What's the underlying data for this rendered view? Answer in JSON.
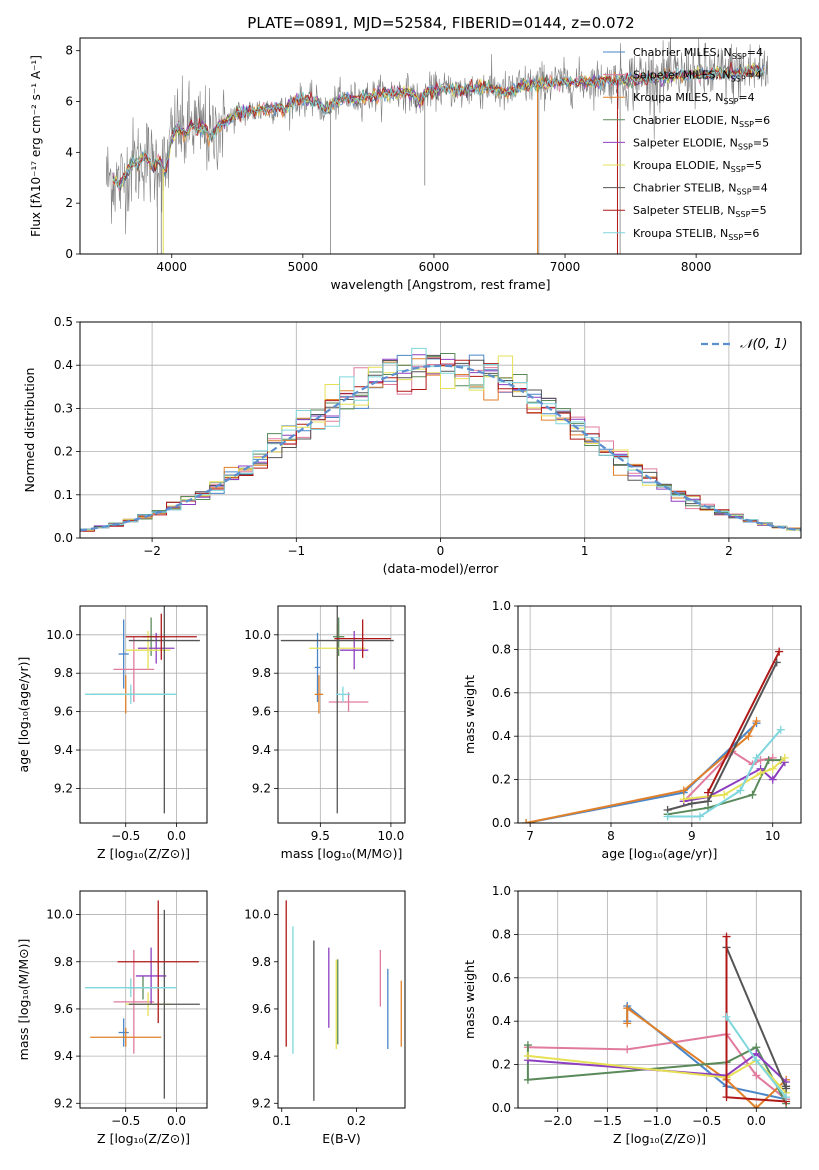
{
  "title": "PLATE=0891, MJD=52584, FIBERID=0144, z=0.072",
  "colors": {
    "Chabrier MILES": "#4a86c8",
    "Salpeter MILES": "#e07b9e",
    "Kroupa MILES": "#e0802a",
    "Chabrier ELODIE": "#5a8a5a",
    "Salpeter ELODIE": "#8e3fc0",
    "Kroupa ELODIE": "#e6e055",
    "Chabrier STELIB": "#555555",
    "Salpeter STELIB": "#b01818",
    "Kroupa STELIB": "#7fd6dc",
    "data": "#808080",
    "gauss": "#5b8fd0"
  },
  "chart_data": [
    {
      "id": "spectrum",
      "type": "line",
      "xlabel": "wavelength [Angstrom, rest frame]",
      "ylabel": "Flux [fλ10⁻¹⁷ erg cm⁻² s⁻¹ A⁻¹]",
      "xlim": [
        3300,
        8800
      ],
      "ylim": [
        0,
        8.5
      ],
      "xticks": [
        4000,
        5000,
        6000,
        7000,
        8000
      ],
      "yticks": [
        0,
        2,
        4,
        6,
        8
      ],
      "legend_position": "top-right",
      "legend": [
        {
          "model": "Chabrier MILES",
          "label": "Chabrier MILES, N",
          "sub": "SSP",
          "tail": "=4"
        },
        {
          "model": "Salpeter MILES",
          "label": "Salpeter MILES, N",
          "sub": "SSP",
          "tail": "=4"
        },
        {
          "model": "Kroupa MILES",
          "label": "Kroupa MILES, N",
          "sub": "SSP",
          "tail": "=4"
        },
        {
          "model": "Chabrier ELODIE",
          "label": "Chabrier ELODIE, N",
          "sub": "SSP",
          "tail": "=6"
        },
        {
          "model": "Salpeter ELODIE",
          "label": "Salpeter ELODIE, N",
          "sub": "SSP",
          "tail": "=5"
        },
        {
          "model": "Kroupa ELODIE",
          "label": "Kroupa ELODIE, N",
          "sub": "SSP",
          "tail": "=5"
        },
        {
          "model": "Chabrier STELIB",
          "label": "Chabrier STELIB, N",
          "sub": "SSP",
          "tail": "=4"
        },
        {
          "model": "Salpeter STELIB",
          "label": "Salpeter STELIB, N",
          "sub": "SSP",
          "tail": "=5"
        },
        {
          "model": "Kroupa STELIB",
          "label": "Kroupa STELIB, N",
          "sub": "SSP",
          "tail": "=6"
        }
      ],
      "continuum": [
        [
          3550,
          3.0
        ],
        [
          3600,
          2.7
        ],
        [
          3650,
          3.1
        ],
        [
          3700,
          3.6
        ],
        [
          3750,
          3.6
        ],
        [
          3800,
          3.9
        ],
        [
          3850,
          3.4
        ],
        [
          3900,
          3.7
        ],
        [
          3950,
          3.2
        ],
        [
          4000,
          4.6
        ],
        [
          4050,
          5.0
        ],
        [
          4100,
          4.7
        ],
        [
          4150,
          5.1
        ],
        [
          4200,
          4.9
        ],
        [
          4250,
          5.0
        ],
        [
          4300,
          4.5
        ],
        [
          4350,
          5.0
        ],
        [
          4400,
          5.2
        ],
        [
          4500,
          5.5
        ],
        [
          4600,
          5.6
        ],
        [
          4700,
          5.7
        ],
        [
          4800,
          5.8
        ],
        [
          4861,
          5.6
        ],
        [
          4900,
          5.9
        ],
        [
          5000,
          6.1
        ],
        [
          5100,
          6.0
        ],
        [
          5175,
          5.6
        ],
        [
          5200,
          5.8
        ],
        [
          5300,
          6.1
        ],
        [
          5400,
          6.1
        ],
        [
          5500,
          6.2
        ],
        [
          5600,
          6.3
        ],
        [
          5700,
          6.35
        ],
        [
          5800,
          6.4
        ],
        [
          5890,
          6.0
        ],
        [
          5950,
          6.4
        ],
        [
          6100,
          6.5
        ],
        [
          6200,
          6.4
        ],
        [
          6300,
          6.5
        ],
        [
          6400,
          6.6
        ],
        [
          6500,
          6.4
        ],
        [
          6563,
          6.3
        ],
        [
          6650,
          6.6
        ],
        [
          6800,
          6.7
        ],
        [
          7000,
          6.75
        ],
        [
          7200,
          6.8
        ],
        [
          7400,
          6.85
        ],
        [
          7600,
          6.9
        ],
        [
          7800,
          7.0
        ],
        [
          8000,
          7.05
        ],
        [
          8200,
          7.1
        ],
        [
          8400,
          7.2
        ],
        [
          8500,
          7.2
        ]
      ],
      "data_noise_segments": [
        [
          3500,
          4400,
          1.6
        ],
        [
          4400,
          5200,
          0.55
        ],
        [
          5200,
          6200,
          0.6
        ],
        [
          6200,
          7400,
          0.75
        ],
        [
          7400,
          8550,
          1.1
        ]
      ],
      "spikes": [
        [
          3890,
          0
        ],
        [
          3920,
          0
        ],
        [
          5210,
          0
        ],
        [
          5930,
          2.7
        ],
        [
          6800,
          0
        ],
        [
          7420,
          0
        ]
      ],
      "model_spikes": [
        [
          3935,
          0
        ],
        [
          6790,
          0
        ],
        [
          7400,
          0
        ]
      ]
    },
    {
      "id": "residuals",
      "type": "line",
      "xlabel": "(data-model)/error",
      "ylabel": "Normed distribution",
      "xlim": [
        -2.5,
        2.5
      ],
      "ylim": [
        0,
        0.5
      ],
      "xticks": [
        -2,
        -1,
        0,
        1,
        2
      ],
      "yticks": [
        0.0,
        0.1,
        0.2,
        0.3,
        0.4,
        0.5
      ],
      "legend_position": "top-right",
      "gauss_label": "𝒩(0, 1)",
      "bin_width": 0.1
    },
    {
      "id": "age-Z",
      "type": "scatter",
      "xlabel": "Z [log₁₀(Z/Z⊙)]",
      "ylabel": "age  [log₁₀(age/yr)]",
      "xlim": [
        -0.95,
        0.3
      ],
      "ylim": [
        9.02,
        10.15
      ],
      "xticks": [
        -0.5,
        0.0
      ],
      "yticks": [
        9.2,
        9.4,
        9.6,
        9.8,
        10.0
      ],
      "points": [
        {
          "model": "Chabrier MILES",
          "x": -0.52,
          "y": 9.9,
          "xerr": 0.05,
          "yerr": 0.18
        },
        {
          "model": "Salpeter MILES",
          "x": -0.42,
          "y": 9.82,
          "xerr": 0.2,
          "yerr": 0.17
        },
        {
          "model": "Kroupa MILES",
          "x": -0.5,
          "y": 9.69,
          "xerr": 0.35,
          "yerr": 0.1
        },
        {
          "model": "Chabrier ELODIE",
          "x": -0.25,
          "y": 9.99,
          "xerr": 0.08,
          "yerr": 0.1
        },
        {
          "model": "Salpeter ELODIE",
          "x": -0.2,
          "y": 9.93,
          "xerr": 0.18,
          "yerr": 0.08
        },
        {
          "model": "Kroupa ELODIE",
          "x": -0.28,
          "y": 9.92,
          "xerr": 0.22,
          "yerr": 0.1
        },
        {
          "model": "Chabrier STELIB",
          "x": -0.12,
          "y": 9.97,
          "xerr": 0.35,
          "yerr": 0.9
        },
        {
          "model": "Salpeter STELIB",
          "x": -0.15,
          "y": 9.99,
          "xerr": 0.35,
          "yerr": 0.12
        },
        {
          "model": "Kroupa STELIB",
          "x": -0.45,
          "y": 9.69,
          "xerr": 0.45,
          "yerr": 0.05
        }
      ]
    },
    {
      "id": "age-mass",
      "type": "scatter",
      "xlabel": "mass [log₁₀(M/M⊙)]",
      "ylabel": "",
      "xlim": [
        9.2,
        10.1
      ],
      "ylim": [
        9.02,
        10.15
      ],
      "xticks": [
        9.5,
        10.0
      ],
      "yticks": [
        9.2,
        9.4,
        9.6,
        9.8,
        10.0
      ],
      "points": [
        {
          "model": "Chabrier MILES",
          "x": 9.48,
          "y": 9.83,
          "xerr": 0.02,
          "yerr": 0.18
        },
        {
          "model": "Salpeter MILES",
          "x": 9.7,
          "y": 9.65,
          "xerr": 0.14,
          "yerr": 0.05
        },
        {
          "model": "Kroupa MILES",
          "x": 9.49,
          "y": 9.69,
          "xerr": 0.03,
          "yerr": 0.1
        },
        {
          "model": "Chabrier ELODIE",
          "x": 9.63,
          "y": 9.99,
          "xerr": 0.04,
          "yerr": 0.1
        },
        {
          "model": "Salpeter ELODIE",
          "x": 9.74,
          "y": 9.92,
          "xerr": 0.1,
          "yerr": 0.1
        },
        {
          "model": "Kroupa ELODIE",
          "x": 9.62,
          "y": 9.93,
          "xerr": 0.2,
          "yerr": 0.12
        },
        {
          "model": "Chabrier STELIB",
          "x": 9.62,
          "y": 9.97,
          "xerr": 0.4,
          "yerr": 0.9
        },
        {
          "model": "Salpeter STELIB",
          "x": 9.8,
          "y": 9.98,
          "xerr": 0.2,
          "yerr": 0.1
        },
        {
          "model": "Kroupa STELIB",
          "x": 9.66,
          "y": 9.69,
          "xerr": 0.05,
          "yerr": 0.04
        }
      ]
    },
    {
      "id": "weight-age",
      "type": "line",
      "xlabel": "age  [log₁₀(age/yr)]",
      "ylabel": "mass weight",
      "xlim": [
        6.85,
        10.35
      ],
      "ylim": [
        0,
        1
      ],
      "xticks": [
        7,
        8,
        9,
        10
      ],
      "yticks": [
        0.0,
        0.2,
        0.4,
        0.6,
        0.8,
        1.0
      ],
      "series": [
        {
          "model": "Chabrier MILES",
          "x": [
            6.95,
            8.9,
            9.8
          ],
          "y": [
            0.0,
            0.14,
            0.46
          ]
        },
        {
          "model": "Salpeter MILES",
          "x": [
            8.9,
            9.5,
            9.75,
            9.85,
            10.0
          ],
          "y": [
            0.1,
            0.33,
            0.27,
            0.29,
            0.3
          ]
        },
        {
          "model": "Kroupa MILES",
          "x": [
            6.95,
            8.9,
            9.7,
            9.8
          ],
          "y": [
            0.0,
            0.15,
            0.4,
            0.47
          ]
        },
        {
          "model": "Chabrier ELODIE",
          "x": [
            8.7,
            9.2,
            9.75,
            9.95,
            10.1
          ],
          "y": [
            0.04,
            0.07,
            0.13,
            0.29,
            0.29
          ]
        },
        {
          "model": "Salpeter ELODIE",
          "x": [
            8.9,
            9.2,
            9.85,
            10.0,
            10.15
          ],
          "y": [
            0.1,
            0.12,
            0.25,
            0.2,
            0.28
          ]
        },
        {
          "model": "Kroupa ELODIE",
          "x": [
            8.9,
            9.4,
            9.85,
            10.0,
            10.15
          ],
          "y": [
            0.11,
            0.13,
            0.23,
            0.25,
            0.3
          ]
        },
        {
          "model": "Chabrier STELIB",
          "x": [
            8.7,
            9.0,
            9.2,
            10.05
          ],
          "y": [
            0.06,
            0.09,
            0.1,
            0.74
          ]
        },
        {
          "model": "Salpeter STELIB",
          "x": [
            9.2,
            10.08
          ],
          "y": [
            0.14,
            0.79
          ]
        },
        {
          "model": "Kroupa STELIB",
          "x": [
            8.7,
            9.1,
            9.6,
            9.8,
            10.1
          ],
          "y": [
            0.03,
            0.03,
            0.15,
            0.3,
            0.43
          ]
        }
      ]
    },
    {
      "id": "mass-Z",
      "type": "scatter",
      "xlabel": "Z [log₁₀(Z/Z⊙)]",
      "ylabel": "mass [log₁₀(M/M⊙)]",
      "xlim": [
        -0.95,
        0.3
      ],
      "ylim": [
        9.18,
        10.1
      ],
      "xticks": [
        -0.5,
        0.0
      ],
      "yticks": [
        9.2,
        9.4,
        9.6,
        9.8,
        10.0
      ],
      "points": [
        {
          "model": "Chabrier MILES",
          "x": -0.52,
          "y": 9.5,
          "xerr": 0.05,
          "yerr": 0.06
        },
        {
          "model": "Salpeter MILES",
          "x": -0.42,
          "y": 9.63,
          "xerr": 0.2,
          "yerr": 0.22
        },
        {
          "model": "Kroupa MILES",
          "x": -0.5,
          "y": 9.48,
          "xerr": 0.35,
          "yerr": 0.04
        },
        {
          "model": "Chabrier ELODIE",
          "x": -0.33,
          "y": 9.69,
          "xerr": 0.15,
          "yerr": 0.05
        },
        {
          "model": "Salpeter ELODIE",
          "x": -0.25,
          "y": 9.74,
          "xerr": 0.15,
          "yerr": 0.12
        },
        {
          "model": "Kroupa ELODIE",
          "x": -0.28,
          "y": 9.62,
          "xerr": 0.22,
          "yerr": 0.05
        },
        {
          "model": "Chabrier STELIB",
          "x": -0.12,
          "y": 9.62,
          "xerr": 0.35,
          "yerr": 0.4
        },
        {
          "model": "Salpeter STELIB",
          "x": -0.18,
          "y": 9.8,
          "xerr": 0.4,
          "yerr": 0.26
        },
        {
          "model": "Kroupa STELIB",
          "x": -0.45,
          "y": 9.69,
          "xerr": 0.45,
          "yerr": 0.04
        }
      ]
    },
    {
      "id": "mass-ebv",
      "type": "scatter",
      "xlabel": "E(B-V)",
      "ylabel": "",
      "xlim": [
        0.095,
        0.265
      ],
      "ylim": [
        9.18,
        10.1
      ],
      "xticks": [
        0.1,
        0.2
      ],
      "yticks": [
        9.2,
        9.4,
        9.6,
        9.8,
        10.0
      ],
      "points": [
        {
          "model": "Chabrier MILES",
          "x": 0.242,
          "y": 9.6,
          "xerr": 0,
          "yerr": 0.17
        },
        {
          "model": "Salpeter MILES",
          "x": 0.232,
          "y": 9.73,
          "xerr": 0,
          "yerr": 0.12
        },
        {
          "model": "Kroupa MILES",
          "x": 0.26,
          "y": 9.58,
          "xerr": 0,
          "yerr": 0.14
        },
        {
          "model": "Chabrier ELODIE",
          "x": 0.175,
          "y": 9.63,
          "xerr": 0,
          "yerr": 0.18
        },
        {
          "model": "Salpeter ELODIE",
          "x": 0.163,
          "y": 9.69,
          "xerr": 0,
          "yerr": 0.17
        },
        {
          "model": "Kroupa ELODIE",
          "x": 0.173,
          "y": 9.62,
          "xerr": 0,
          "yerr": 0.19
        },
        {
          "model": "Chabrier STELIB",
          "x": 0.143,
          "y": 9.55,
          "xerr": 0,
          "yerr": 0.34
        },
        {
          "model": "Salpeter STELIB",
          "x": 0.106,
          "y": 9.75,
          "xerr": 0,
          "yerr": 0.31
        },
        {
          "model": "Kroupa STELIB",
          "x": 0.115,
          "y": 9.68,
          "xerr": 0,
          "yerr": 0.27
        }
      ]
    },
    {
      "id": "weight-Z",
      "type": "line",
      "xlabel": "Z [log₁₀(Z/Z⊙)]",
      "ylabel": "mass weight",
      "xlim": [
        -2.4,
        0.45
      ],
      "ylim": [
        0,
        1
      ],
      "xticks": [
        -2.0,
        -1.5,
        -1.0,
        -0.5,
        0.0
      ],
      "yticks": [
        0.0,
        0.2,
        0.4,
        0.6,
        0.8,
        1.0
      ],
      "series": [
        {
          "model": "Chabrier MILES",
          "x": [
            -1.3,
            -1.3,
            -0.3,
            0.3
          ],
          "y": [
            0.4,
            0.47,
            0.1,
            0.04
          ]
        },
        {
          "model": "Salpeter MILES",
          "x": [
            -2.3,
            -1.3,
            -0.3,
            0.0,
            0.3
          ],
          "y": [
            0.28,
            0.27,
            0.34,
            0.15,
            0.04
          ]
        },
        {
          "model": "Kroupa MILES",
          "x": [
            -1.3,
            -1.3,
            -0.3,
            0.0,
            0.3
          ],
          "y": [
            0.39,
            0.46,
            0.13,
            0.0,
            0.13
          ]
        },
        {
          "model": "Chabrier ELODIE",
          "x": [
            -2.3,
            -2.3,
            -0.3,
            0.0,
            0.3
          ],
          "y": [
            0.29,
            0.13,
            0.21,
            0.28,
            0.02
          ]
        },
        {
          "model": "Salpeter ELODIE",
          "x": [
            -2.3,
            -0.3,
            0.0,
            0.3
          ],
          "y": [
            0.22,
            0.15,
            0.25,
            0.12
          ]
        },
        {
          "model": "Kroupa ELODIE",
          "x": [
            -2.3,
            -0.3,
            0.0,
            0.3
          ],
          "y": [
            0.24,
            0.14,
            0.22,
            0.07
          ]
        },
        {
          "model": "Chabrier STELIB",
          "x": [
            -0.3,
            0.3,
            0.3
          ],
          "y": [
            0.74,
            0.09,
            0.1
          ]
        },
        {
          "model": "Salpeter STELIB",
          "x": [
            -0.3,
            -0.3,
            0.3
          ],
          "y": [
            0.79,
            0.05,
            0.03
          ]
        },
        {
          "model": "Kroupa STELIB",
          "x": [
            -0.3,
            0.0,
            0.3
          ],
          "y": [
            0.42,
            0.22,
            0.05
          ]
        }
      ]
    }
  ]
}
